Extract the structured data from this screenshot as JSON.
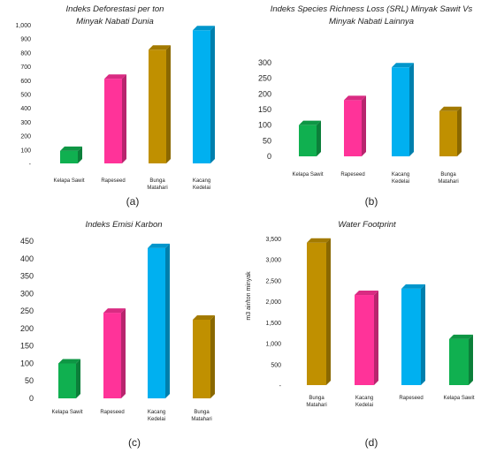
{
  "chart_data": [
    {
      "type": "bar",
      "title_lines": [
        "Indeks Deforestasi per ton",
        "Minyak Nabati Dunia"
      ],
      "panel_label": "(a)",
      "categories": [
        [
          "Kelapa Sawit"
        ],
        [
          "Rapeseed"
        ],
        [
          "Bunga",
          "Matahari"
        ],
        [
          "Kacang",
          "Kedelai"
        ]
      ],
      "values": [
        90,
        610,
        820,
        960
      ],
      "colors": [
        "#10b050",
        "#ff3399",
        "#c09000",
        "#00b0f0"
      ],
      "yticks": [
        "-",
        "100",
        "200",
        "300",
        "400",
        "500",
        "600",
        "700",
        "800",
        "900",
        "1,000"
      ],
      "ylim": [
        0,
        1000
      ],
      "ylabel": ""
    },
    {
      "type": "bar",
      "title_lines": [
        "Indeks Species Richness Loss (SRL) Minyak Sawit Vs",
        "Minyak Nabati Lainnya"
      ],
      "panel_label": "(b)",
      "categories": [
        [
          "Kelapa Sawit"
        ],
        [
          "Rapeseed"
        ],
        [
          "Kacang",
          "Kedelai"
        ],
        [
          "Bunga",
          "Matahari"
        ]
      ],
      "values": [
        100,
        180,
        285,
        145
      ],
      "colors": [
        "#10b050",
        "#ff3399",
        "#00b0f0",
        "#c09000"
      ],
      "yticks": [
        "0",
        "50",
        "100",
        "150",
        "200",
        "250",
        "300"
      ],
      "ylim": [
        0,
        300
      ],
      "ylabel": ""
    },
    {
      "type": "bar",
      "title_lines": [
        "Indeks Emisi Karbon"
      ],
      "panel_label": "(c)",
      "categories": [
        [
          "Kelapa Sawit"
        ],
        [
          "Rapeseed"
        ],
        [
          "Kacang",
          "Kedelai"
        ],
        [
          "Bunga",
          "Matahari"
        ]
      ],
      "values": [
        100,
        245,
        430,
        225
      ],
      "colors": [
        "#10b050",
        "#ff3399",
        "#00b0f0",
        "#c09000"
      ],
      "yticks": [
        "0",
        "50",
        "100",
        "150",
        "200",
        "250",
        "300",
        "350",
        "400",
        "450"
      ],
      "ylim": [
        0,
        450
      ],
      "ylabel": ""
    },
    {
      "type": "bar",
      "title_lines": [
        "Water Footprint"
      ],
      "panel_label": "(d)",
      "categories": [
        [
          "Bunga",
          "Matahari"
        ],
        [
          "Kacang",
          "Kedelai"
        ],
        [
          "Rapeseed"
        ],
        [
          "Kelapa Sawit"
        ]
      ],
      "values": [
        3400,
        2150,
        2300,
        1100
      ],
      "colors": [
        "#c09000",
        "#ff3399",
        "#00b0f0",
        "#10b050"
      ],
      "yticks": [
        "-",
        "500",
        "1,000",
        "1,500",
        "2,000",
        "2,500",
        "3,000",
        "3,500"
      ],
      "ylim": [
        0,
        3500
      ],
      "ylabel": "m3 air/ton minyak"
    }
  ]
}
